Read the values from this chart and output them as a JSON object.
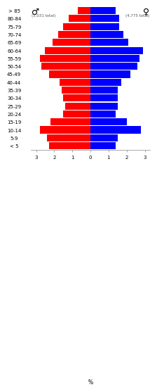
{
  "age_groups": [
    "< 5",
    "5-9",
    "10-14",
    "15-19",
    "20-24",
    "25-29",
    "30-34",
    "35-39",
    "40-44",
    "45-49",
    "50-54",
    "55-59",
    "60-64",
    "65-69",
    "70-74",
    "75-79",
    "80-84",
    "> 85"
  ],
  "male_pct": [
    2.3,
    2.4,
    2.8,
    2.2,
    1.5,
    1.4,
    1.5,
    1.6,
    1.7,
    2.3,
    2.7,
    2.8,
    2.5,
    2.1,
    1.8,
    1.5,
    1.2,
    0.7
  ],
  "female_pct": [
    1.4,
    1.5,
    2.8,
    2.0,
    1.4,
    1.5,
    1.5,
    1.5,
    1.7,
    2.2,
    2.6,
    2.7,
    2.9,
    2.1,
    1.8,
    1.6,
    1.6,
    1.4
  ],
  "male_color": "#ff0000",
  "female_color": "#0000ff",
  "male_symbol": "♂",
  "female_symbol": "♀",
  "male_total": "(5,031 total)",
  "female_total": "(4,775 total)",
  "xlim": 3.3,
  "xticks": [
    -3,
    -2,
    -1,
    0,
    1,
    2,
    3
  ],
  "xtick_labels": [
    "3",
    "2",
    "1",
    "0",
    "1",
    "2",
    "3"
  ],
  "center_label": "%",
  "background_color": "#ffffff"
}
